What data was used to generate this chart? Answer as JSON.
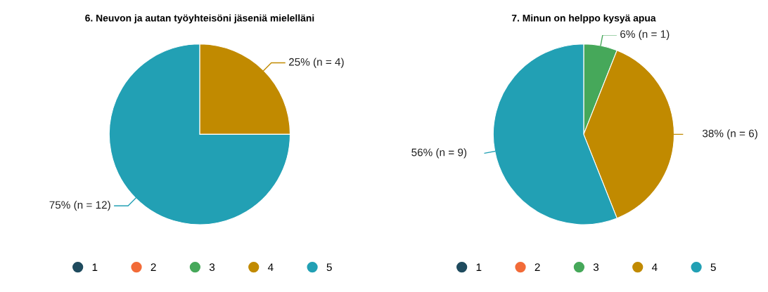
{
  "chart_data": [
    {
      "type": "pie",
      "title": "6. Neuvon ja autan työyhteisöni jäseniä mielelläni",
      "categories": [
        "1",
        "2",
        "3",
        "4",
        "5"
      ],
      "values": [
        0,
        0,
        0,
        25,
        75
      ],
      "colors": [
        "#1f4b5e",
        "#f26b38",
        "#46a85a",
        "#c18a00",
        "#22a0b4"
      ],
      "value_labels": [
        null,
        null,
        null,
        "25% (n = 4)",
        "75% (n = 12)"
      ],
      "legend": "bottom"
    },
    {
      "type": "pie",
      "title": "7. Minun on helppo kysyä apua",
      "categories": [
        "1",
        "2",
        "3",
        "4",
        "5"
      ],
      "values": [
        0,
        0,
        6,
        38,
        56
      ],
      "colors": [
        "#1f4b5e",
        "#f26b38",
        "#46a85a",
        "#c18a00",
        "#22a0b4"
      ],
      "value_labels": [
        null,
        null,
        "6% (n = 1)",
        "38% (n = 6)",
        "56% (n = 9)"
      ],
      "legend": "bottom"
    }
  ]
}
